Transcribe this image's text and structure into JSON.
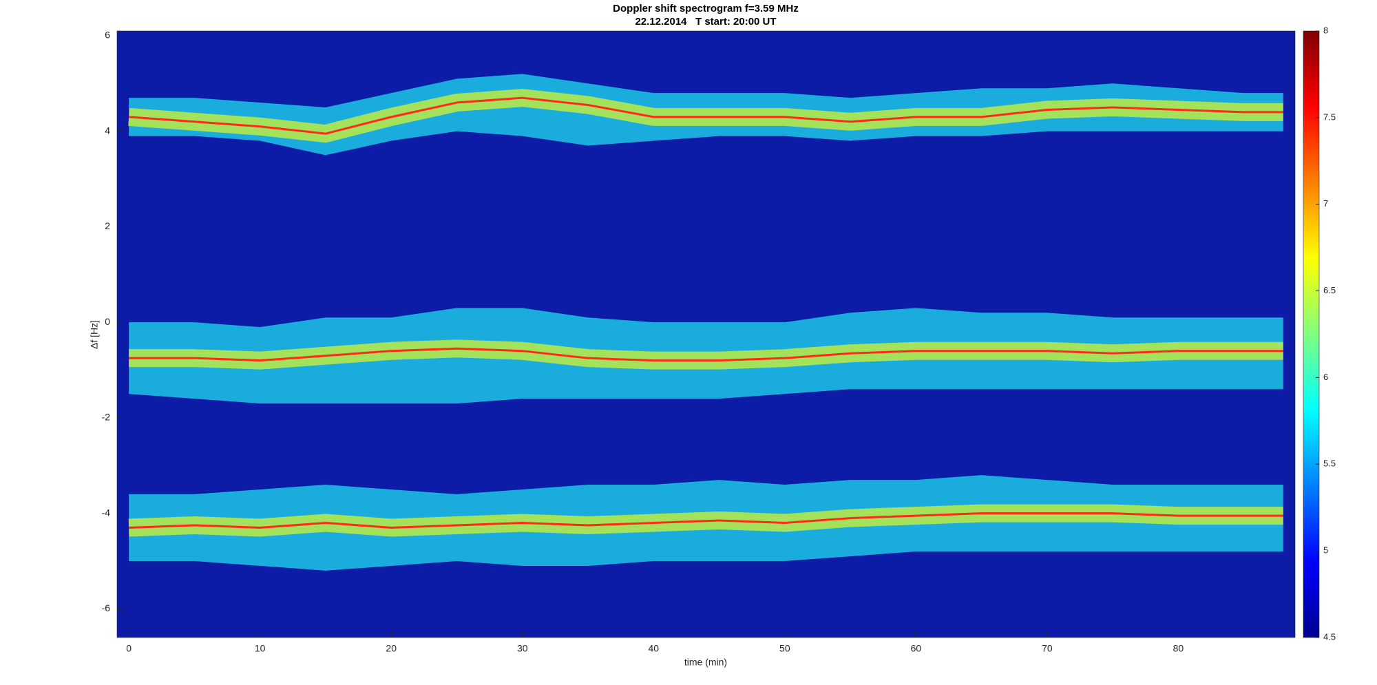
{
  "chart_data": {
    "type": "spectrogram",
    "title": "Doppler shift spectrogram f=3.59 MHz",
    "subtitle": "22.12.2014   T start: 20:00 UT",
    "xlabel": "time (min)",
    "ylabel": "Δf [Hz]",
    "xlim": [
      -0.9,
      88.9
    ],
    "ylim": [
      -6.6,
      6.1
    ],
    "xticks": [
      0,
      10,
      20,
      30,
      40,
      50,
      60,
      70,
      80
    ],
    "yticks": [
      -6,
      -4,
      -2,
      0,
      2,
      4,
      6
    ],
    "clim": [
      4.5,
      8
    ],
    "cticks": [
      4.5,
      5,
      5.5,
      6,
      6.5,
      7,
      7.5,
      8
    ],
    "background": "#0c1ca6",
    "x": [
      0,
      5,
      10,
      15,
      20,
      25,
      30,
      35,
      40,
      45,
      50,
      55,
      60,
      65,
      70,
      75,
      80,
      85,
      88
    ],
    "series": [
      {
        "color": "#1ec6e8",
        "values": [
          4.3,
          4.2,
          4.1,
          3.95,
          4.3,
          4.6,
          4.7,
          4.55,
          4.3,
          4.3,
          4.3,
          4.2,
          4.3,
          4.3,
          4.45,
          4.5,
          4.45,
          4.4,
          4.4
        ],
        "upper": [
          4.7,
          4.7,
          4.6,
          4.5,
          4.8,
          5.1,
          5.2,
          5.0,
          4.8,
          4.8,
          4.8,
          4.7,
          4.8,
          4.9,
          4.9,
          5.0,
          4.9,
          4.8,
          4.8
        ],
        "lower": [
          3.9,
          3.9,
          3.8,
          3.5,
          3.8,
          4.0,
          3.9,
          3.7,
          3.8,
          3.9,
          3.9,
          3.8,
          3.9,
          3.9,
          4.0,
          4.0,
          4.0,
          4.0,
          4.0
        ]
      },
      {
        "color": "#1ec6e8",
        "values": [
          -0.75,
          -0.75,
          -0.8,
          -0.7,
          -0.6,
          -0.55,
          -0.6,
          -0.75,
          -0.8,
          -0.8,
          -0.75,
          -0.65,
          -0.6,
          -0.6,
          -0.6,
          -0.65,
          -0.6,
          -0.6,
          -0.6
        ],
        "upper": [
          0.0,
          0.0,
          -0.1,
          0.1,
          0.1,
          0.3,
          0.3,
          0.1,
          0.0,
          0.0,
          0.0,
          0.2,
          0.3,
          0.2,
          0.2,
          0.1,
          0.1,
          0.1,
          0.1
        ],
        "lower": [
          -1.5,
          -1.6,
          -1.7,
          -1.7,
          -1.7,
          -1.7,
          -1.6,
          -1.6,
          -1.6,
          -1.6,
          -1.5,
          -1.4,
          -1.4,
          -1.4,
          -1.4,
          -1.4,
          -1.4,
          -1.4,
          -1.4
        ]
      },
      {
        "color": "#1ec6e8",
        "values": [
          -4.3,
          -4.25,
          -4.3,
          -4.2,
          -4.3,
          -4.25,
          -4.2,
          -4.25,
          -4.2,
          -4.15,
          -4.2,
          -4.1,
          -4.05,
          -4.0,
          -4.0,
          -4.0,
          -4.05,
          -4.05,
          -4.05
        ],
        "upper": [
          -3.6,
          -3.6,
          -3.5,
          -3.4,
          -3.5,
          -3.6,
          -3.5,
          -3.4,
          -3.4,
          -3.3,
          -3.4,
          -3.3,
          -3.3,
          -3.2,
          -3.3,
          -3.4,
          -3.4,
          -3.4,
          -3.4
        ],
        "lower": [
          -5.0,
          -5.0,
          -5.1,
          -5.2,
          -5.1,
          -5.0,
          -5.1,
          -5.1,
          -5.0,
          -5.0,
          -5.0,
          -4.9,
          -4.8,
          -4.8,
          -4.8,
          -4.8,
          -4.8,
          -4.8,
          -4.8
        ]
      }
    ],
    "core_color": "#c8f03a",
    "ridge_color": "#ff2a1a"
  }
}
